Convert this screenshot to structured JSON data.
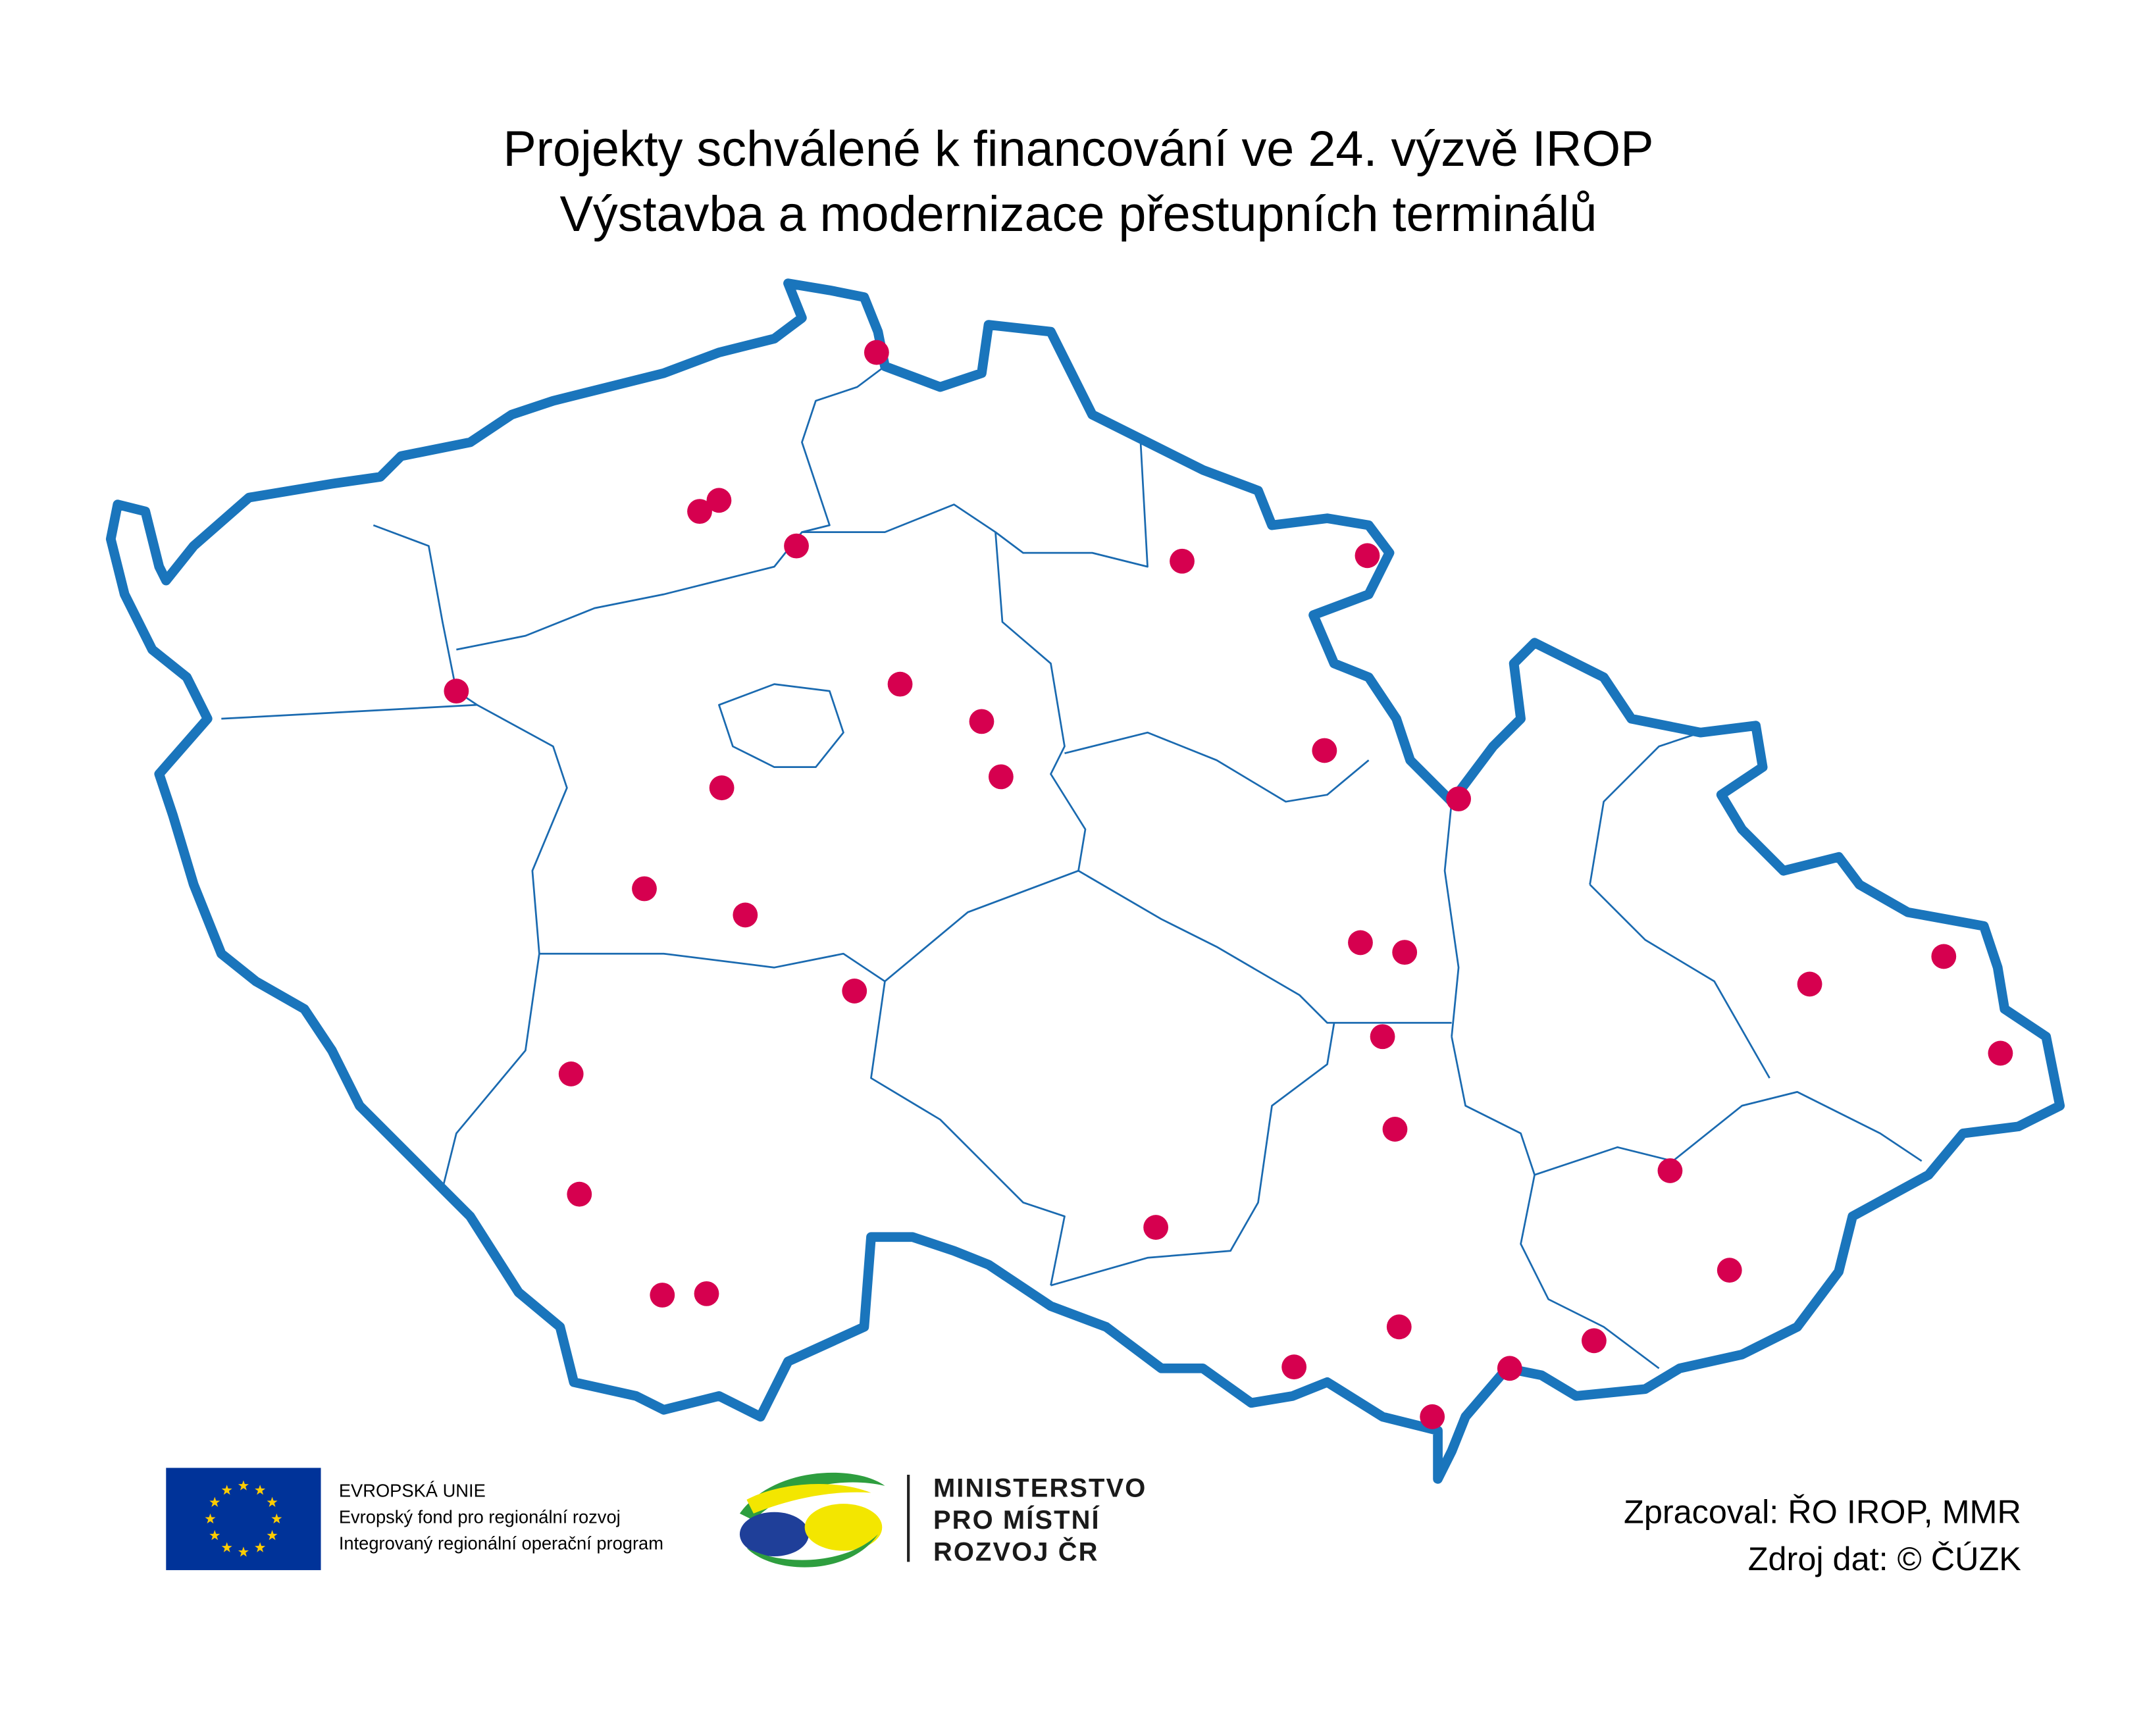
{
  "title": {
    "line1": "Projekty schválené k financování ve 24. výzvě IROP",
    "line2": "Výstavba a modernizace přestupních terminálů"
  },
  "logos": {
    "eu": [
      "EVROPSKÁ UNIE",
      "Evropský fond pro regionální rozvoj",
      "Integrovaný regionální operační program"
    ],
    "ministry": [
      "MINISTERSTVO",
      "PRO MÍSTNÍ",
      "ROZVOJ ČR"
    ]
  },
  "credits": [
    "Zpracoval: ŘO IROP, MMR",
    "Zdroj dat: © ČÚZK"
  ]
}
